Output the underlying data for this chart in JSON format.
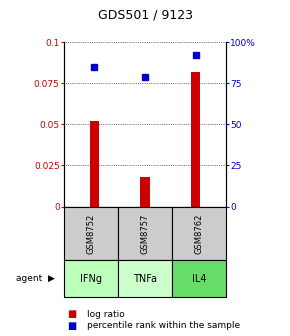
{
  "title": "GDS501 / 9123",
  "samples": [
    "GSM8752",
    "GSM8757",
    "GSM8762"
  ],
  "agents": [
    "IFNg",
    "TNFa",
    "IL4"
  ],
  "log_ratio": [
    0.052,
    0.018,
    0.082
  ],
  "percentile": [
    85,
    79,
    92
  ],
  "ylim_left": [
    0,
    0.1
  ],
  "ylim_right": [
    0,
    100
  ],
  "yticks_left": [
    0,
    0.025,
    0.05,
    0.075,
    0.1
  ],
  "yticks_right": [
    0,
    25,
    50,
    75,
    100
  ],
  "ytick_labels_left": [
    "0",
    "0.025",
    "0.05",
    "0.075",
    "0.1"
  ],
  "ytick_labels_right": [
    "0",
    "25",
    "50",
    "75",
    "100%"
  ],
  "bar_color": "#cc0000",
  "dot_color": "#0000cc",
  "agent_colors": [
    "#bbffbb",
    "#ccffcc",
    "#66dd66"
  ],
  "gsm_bg": "#cccccc",
  "x_positions": [
    0,
    1,
    2
  ],
  "legend_bar_label": "log ratio",
  "legend_dot_label": "percentile rank within the sample",
  "agent_label": "agent"
}
